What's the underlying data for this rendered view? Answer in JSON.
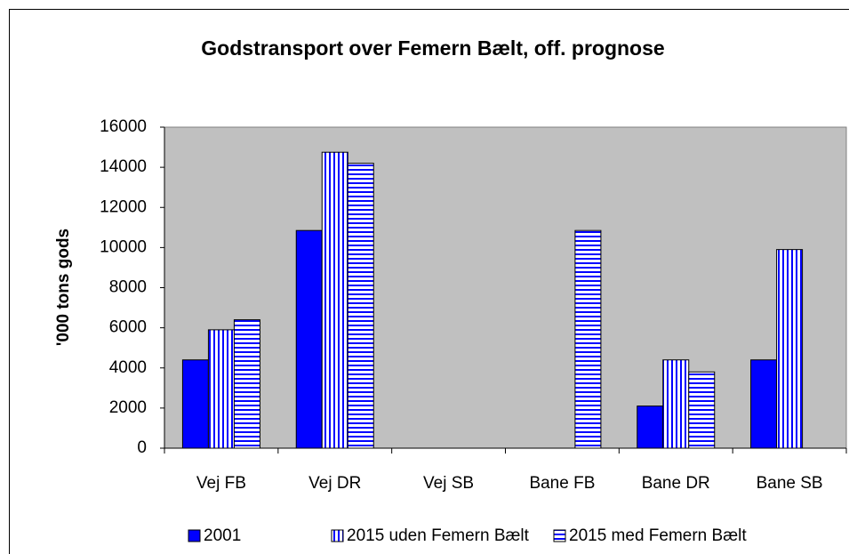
{
  "chart_data": {
    "type": "bar",
    "title": "Godstransport over Femern Bælt, off. prognose",
    "y_label": "'000 tons gods",
    "categories": [
      "Vej FB",
      "Vej DR",
      "Vej SB",
      "Bane FB",
      "Bane DR",
      "Bane SB"
    ],
    "series": [
      {
        "name": "2001",
        "color": "#0000ff",
        "pattern": "solid",
        "values": [
          4400,
          10850,
          0,
          0,
          2100,
          4400
        ]
      },
      {
        "name": "2015 uden Femern Bælt",
        "color": "#0000ff",
        "pattern": "vertical",
        "values": [
          5900,
          14750,
          0,
          0,
          4400,
          9900
        ]
      },
      {
        "name": "2015 med Femern Bælt",
        "color": "#0000ff",
        "pattern": "horizontal",
        "values": [
          6400,
          14200,
          0,
          10850,
          3800,
          0
        ]
      }
    ],
    "ylim": [
      0,
      16000
    ],
    "yticks": [
      0,
      2000,
      4000,
      6000,
      8000,
      10000,
      12000,
      14000,
      16000
    ],
    "legend": "bottom",
    "plot_background": "#c0c0c0"
  }
}
